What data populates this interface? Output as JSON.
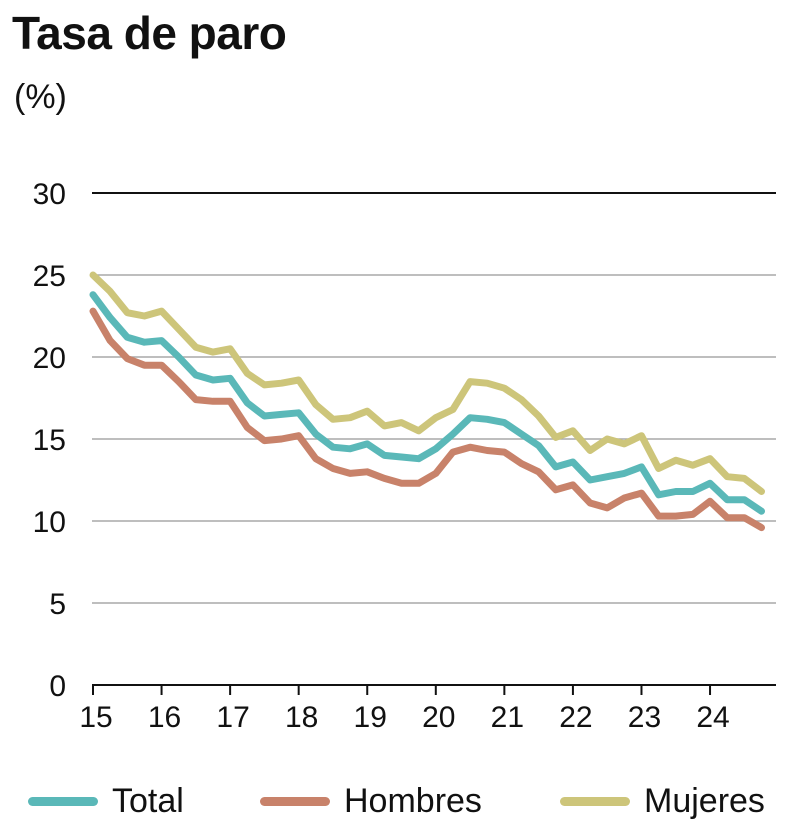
{
  "title": "Tasa de paro",
  "subtitle": "(%)",
  "colors": {
    "Total": "#5ab8b8",
    "Hombres": "#c8826a",
    "Mujeres": "#cdc57a"
  },
  "chart_data": {
    "type": "line",
    "title": "Tasa de paro",
    "ylabel": "(%)",
    "ylim": [
      0,
      30
    ],
    "yticks": [
      0,
      5,
      10,
      15,
      20,
      25,
      30
    ],
    "xticks": [
      "15",
      "16",
      "17",
      "18",
      "19",
      "20",
      "21",
      "22",
      "23",
      "24"
    ],
    "x_period": "quarterly 2015–2024",
    "grid": true,
    "legend_position": "bottom",
    "series": [
      {
        "name": "Total",
        "values": [
          23.8,
          22.4,
          21.2,
          20.9,
          21.0,
          20.0,
          18.9,
          18.6,
          18.7,
          17.2,
          16.4,
          16.5,
          16.6,
          15.3,
          14.5,
          14.4,
          14.7,
          14.0,
          13.9,
          13.8,
          14.4,
          15.3,
          16.3,
          16.2,
          16.0,
          15.3,
          14.6,
          13.3,
          13.6,
          12.5,
          12.7,
          12.9,
          13.3,
          11.6,
          11.8,
          11.8,
          12.3,
          11.3,
          11.3,
          10.6
        ]
      },
      {
        "name": "Hombres",
        "values": [
          22.8,
          21.0,
          19.9,
          19.5,
          19.5,
          18.5,
          17.4,
          17.3,
          17.3,
          15.7,
          14.9,
          15.0,
          15.2,
          13.8,
          13.2,
          12.9,
          13.0,
          12.6,
          12.3,
          12.3,
          12.9,
          14.2,
          14.5,
          14.3,
          14.2,
          13.5,
          13.0,
          11.9,
          12.2,
          11.1,
          10.8,
          11.4,
          11.7,
          10.3,
          10.3,
          10.4,
          11.2,
          10.2,
          10.2,
          9.6
        ]
      },
      {
        "name": "Mujeres",
        "values": [
          25.0,
          24.0,
          22.7,
          22.5,
          22.8,
          21.7,
          20.6,
          20.3,
          20.5,
          19.0,
          18.3,
          18.4,
          18.6,
          17.1,
          16.2,
          16.3,
          16.7,
          15.8,
          16.0,
          15.5,
          16.3,
          16.8,
          18.5,
          18.4,
          18.1,
          17.4,
          16.4,
          15.1,
          15.5,
          14.3,
          15.0,
          14.7,
          15.2,
          13.2,
          13.7,
          13.4,
          13.8,
          12.7,
          12.6,
          11.8
        ]
      }
    ]
  }
}
